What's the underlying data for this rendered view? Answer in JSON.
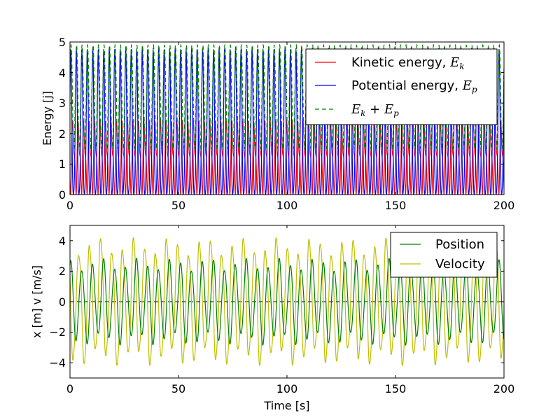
{
  "chart_data": [
    {
      "type": "line",
      "title": "",
      "xlabel": "",
      "ylabel": "Energy [j]",
      "xlim": [
        0,
        200
      ],
      "ylim": [
        0,
        5
      ],
      "xticks": [
        "0",
        "50",
        "100",
        "150",
        "200"
      ],
      "yticks": [
        "0",
        "1",
        "2",
        "3",
        "4",
        "5"
      ],
      "grid": false,
      "legend_position": "top-right",
      "signal": {
        "t_end": 200,
        "x_period_s": 5.06,
        "x_amplitude_min": 2.0,
        "x_amplitude_max": 2.85,
        "total_min": 1.5,
        "total_max": 4.9
      },
      "series": [
        {
          "name": "Kinetic energy, ",
          "math": "E",
          "sub": "k",
          "color": "#ff0000",
          "style": "solid"
        },
        {
          "name": "Potential energy, ",
          "math": "E",
          "sub": "p",
          "color": "#0000ff",
          "style": "solid"
        },
        {
          "name": " + ",
          "math": "E",
          "sub": "k",
          "math2": "E",
          "sub2": "p",
          "color": "#008000",
          "style": "dashed"
        }
      ]
    },
    {
      "type": "line",
      "title": "",
      "xlabel": "Time [s]",
      "ylabel": "x [m] v [m/s]",
      "xlim": [
        0,
        200
      ],
      "ylim": [
        -5,
        5
      ],
      "xticks": [
        "0",
        "50",
        "100",
        "150",
        "200"
      ],
      "yticks": [
        "−4",
        "−2",
        "0",
        "2",
        "4"
      ],
      "grid": false,
      "legend_position": "top-right",
      "reference_line": {
        "y": 0,
        "style": "dashed",
        "color": "#000000"
      },
      "signal": {
        "x_period_s": 5.06,
        "x_amplitude_min": 2.0,
        "x_amplitude_max": 2.85,
        "v_amplitude_min": 3.2,
        "v_amplitude_max": 4.45
      },
      "series": [
        {
          "name": "Position",
          "color": "#008000",
          "style": "solid"
        },
        {
          "name": "Velocity",
          "color": "#bfbf00",
          "style": "solid"
        }
      ]
    }
  ]
}
